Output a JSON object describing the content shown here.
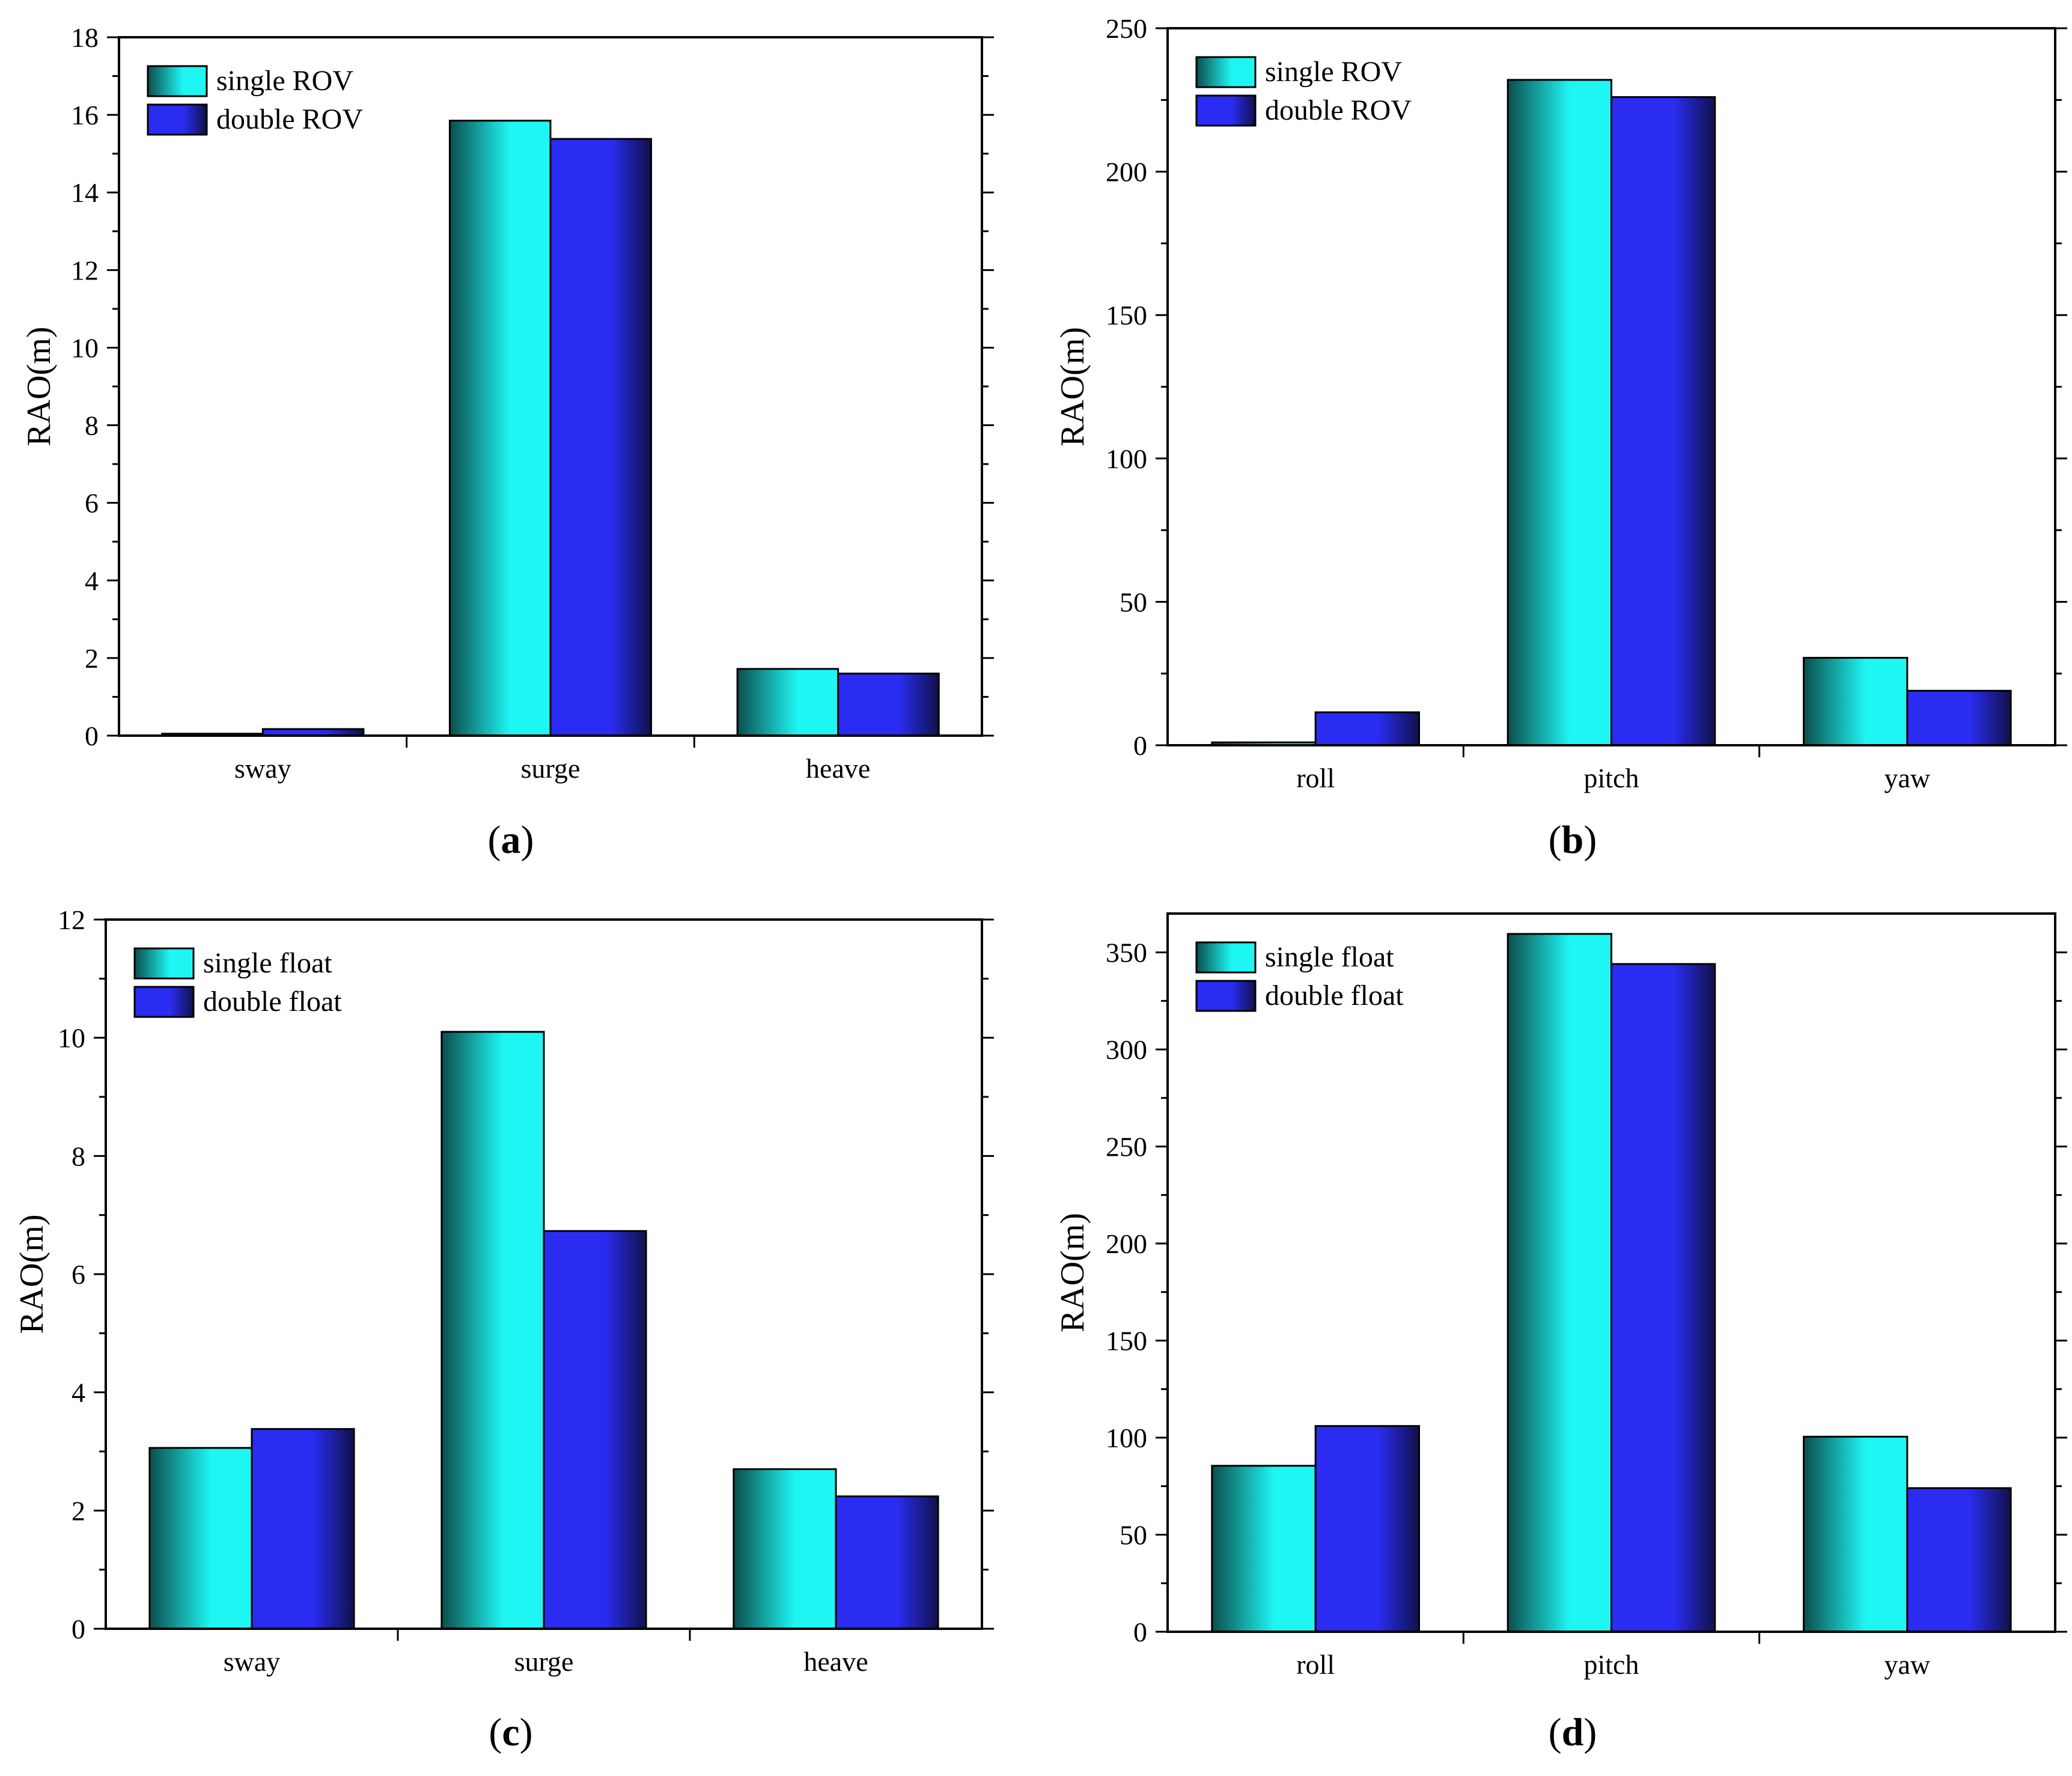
{
  "colors": {
    "single": "#1ef6f4",
    "single_dark": "#0b4e4c",
    "double": "#2a2cf2",
    "double_dark": "#10114a",
    "frame": "#000000"
  },
  "chart_data": [
    {
      "id": "a",
      "panel_label": "a",
      "type": "bar",
      "ylabel": "RAO(m)",
      "xlabel": "",
      "categories": [
        "sway",
        "surge",
        "heave"
      ],
      "series": [
        {
          "name": "single ROV",
          "values": [
            0.05,
            15.85,
            1.72
          ]
        },
        {
          "name": "double ROV",
          "values": [
            0.17,
            15.38,
            1.6
          ]
        }
      ],
      "ylim": [
        0,
        18
      ],
      "yticks": [
        0,
        2,
        4,
        6,
        8,
        10,
        12,
        14,
        16,
        18
      ],
      "legend": "top-left"
    },
    {
      "id": "b",
      "panel_label": "b",
      "type": "bar",
      "ylabel": "RAO(m)",
      "xlabel": "",
      "categories": [
        "roll",
        "pitch",
        "yaw"
      ],
      "series": [
        {
          "name": "single ROV",
          "values": [
            1,
            232,
            30.5
          ]
        },
        {
          "name": "double ROV",
          "values": [
            11.5,
            226,
            19
          ]
        }
      ],
      "ylim": [
        0,
        250
      ],
      "yticks": [
        0,
        50,
        100,
        150,
        200,
        250
      ],
      "legend": "top-left"
    },
    {
      "id": "c",
      "panel_label": "c",
      "type": "bar",
      "ylabel": "RAO(m)",
      "xlabel": "",
      "categories": [
        "sway",
        "surge",
        "heave"
      ],
      "series": [
        {
          "name": "single float",
          "values": [
            3.06,
            10.1,
            2.7
          ]
        },
        {
          "name": "double float",
          "values": [
            3.38,
            6.73,
            2.24
          ]
        }
      ],
      "ylim": [
        0,
        12
      ],
      "yticks": [
        0,
        2,
        4,
        6,
        8,
        10,
        12
      ],
      "legend": "top-left"
    },
    {
      "id": "d",
      "panel_label": "d",
      "type": "bar",
      "ylabel": "RAO(m)",
      "xlabel": "",
      "categories": [
        "roll",
        "pitch",
        "yaw"
      ],
      "series": [
        {
          "name": "single float",
          "values": [
            85.5,
            359.5,
            100.5
          ]
        },
        {
          "name": "double float",
          "values": [
            106,
            344,
            74
          ]
        }
      ],
      "ylim": [
        0,
        370
      ],
      "yticks": [
        0,
        50,
        100,
        150,
        200,
        250,
        300,
        350
      ],
      "legend": "top-left"
    }
  ]
}
